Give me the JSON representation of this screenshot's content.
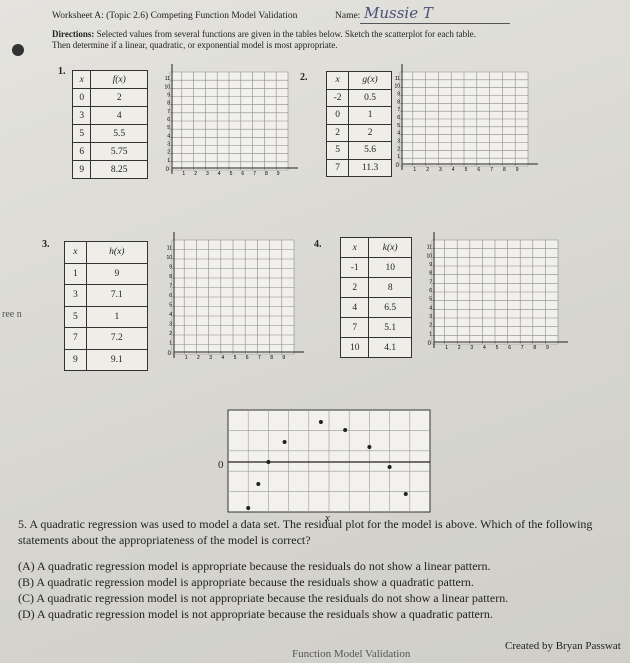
{
  "header": {
    "title": "Worksheet A: (Topic 2.6) Competing Function Model Validation",
    "name_label": "Name:",
    "name_value": "Mussie T"
  },
  "directions": {
    "label": "Directions:",
    "text": "Selected values from several functions are given in the tables below. Sketch the scatterplot for each table.",
    "text2": "Then determine if a linear, quadratic, or exponential model is most appropriate."
  },
  "margin_note": "ree n",
  "grid_axis": {
    "origin_label": "0",
    "x_labels": [
      1,
      2,
      3,
      4,
      5,
      6,
      7,
      8,
      9
    ],
    "y_labels": [
      1,
      2,
      3,
      4,
      5,
      6,
      7,
      8,
      9,
      10,
      11
    ]
  },
  "problems": [
    {
      "number": "1.",
      "x_header": "x",
      "y_header": "f(x)",
      "rows": [
        [
          0,
          2
        ],
        [
          3,
          4
        ],
        [
          5,
          5.5
        ],
        [
          6,
          5.75
        ],
        [
          9,
          8.25
        ]
      ]
    },
    {
      "number": "2.",
      "x_header": "x",
      "y_header": "g(x)",
      "rows": [
        [
          -2,
          0.5
        ],
        [
          0,
          1
        ],
        [
          2,
          2
        ],
        [
          5,
          5.6
        ],
        [
          7,
          11.3
        ]
      ]
    },
    {
      "number": "3.",
      "x_header": "x",
      "y_header": "h(x)",
      "rows": [
        [
          1,
          9
        ],
        [
          3,
          7.1
        ],
        [
          5,
          1
        ],
        [
          7,
          7.2
        ],
        [
          9,
          9.1
        ]
      ]
    },
    {
      "number": "4.",
      "x_header": "x",
      "y_header": "k(x)",
      "rows": [
        [
          -1,
          10
        ],
        [
          2,
          8
        ],
        [
          4,
          6.5
        ],
        [
          7,
          5.1
        ],
        [
          10,
          4.1
        ]
      ]
    }
  ],
  "residual_plot": {
    "zero_label": "0",
    "x_label": "x",
    "points": [
      [
        1.0,
        -4.6
      ],
      [
        1.5,
        -2.2
      ],
      [
        2.0,
        0
      ],
      [
        2.8,
        2
      ],
      [
        4.6,
        4
      ],
      [
        5.8,
        3.2
      ],
      [
        7.0,
        1.5
      ],
      [
        8.0,
        -0.5
      ],
      [
        8.8,
        -3.2
      ]
    ]
  },
  "question": {
    "number": "5.",
    "text": "A quadratic regression was used to model a data set. The residual plot for the model is above. Which of the following statements about the appropriateness of the model is correct?",
    "choices": [
      {
        "letter": "(A)",
        "text": "A quadratic regression model is appropriate because the residuals do not show a linear pattern."
      },
      {
        "letter": "(B)",
        "text": "A quadratic regression model is appropriate because the residuals show a quadratic pattern."
      },
      {
        "letter": "(C)",
        "text": "A quadratic regression model is not appropriate because the residuals do not show a linear pattern."
      },
      {
        "letter": "(D)",
        "text": "A quadratic regression model is not appropriate because the residuals show a quadratic pattern."
      }
    ]
  },
  "footer": {
    "left": "Function Model Validation",
    "right": "Created by Bryan Passwat"
  }
}
